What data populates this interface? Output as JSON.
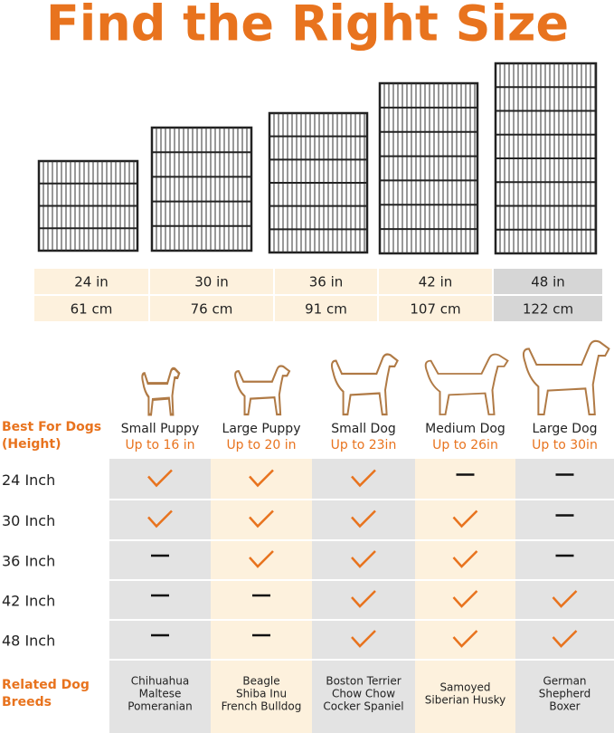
{
  "title": "Find the Right Size",
  "sizes": {
    "rows": [
      [
        "24 in",
        "30 in",
        "36 in",
        "42 in",
        "48 in"
      ],
      [
        "61 cm",
        "76 cm",
        "91 cm",
        "107 cm",
        "122 cm"
      ]
    ]
  },
  "table": {
    "header_label": [
      "Best For Dogs",
      "(Height)"
    ],
    "dogs": [
      {
        "name": "Small Puppy",
        "height": "Up to 16 in",
        "breeds": [
          "Chihuahua",
          "Maltese",
          "Pomeranian"
        ]
      },
      {
        "name": "Large Puppy",
        "height": "Up to 20 in",
        "breeds": [
          "Beagle",
          "Shiba Inu",
          "French Bulldog"
        ]
      },
      {
        "name": "Small Dog",
        "height": "Up to 23in",
        "breeds": [
          "Boston Terrier",
          "Chow Chow",
          "Cocker Spaniel"
        ]
      },
      {
        "name": "Medium Dog",
        "height": "Up to 26in",
        "breeds": [
          "Samoyed",
          "Siberian Husky"
        ]
      },
      {
        "name": "Large Dog",
        "height": "Up to 30in",
        "breeds": [
          "German",
          "Shepherd",
          "Boxer"
        ]
      }
    ],
    "rows": [
      {
        "label": "24 Inch",
        "fits": [
          true,
          true,
          true,
          false,
          false
        ]
      },
      {
        "label": "30 Inch",
        "fits": [
          true,
          true,
          true,
          true,
          false
        ]
      },
      {
        "label": "36 Inch",
        "fits": [
          false,
          true,
          true,
          true,
          false
        ]
      },
      {
        "label": "42 Inch",
        "fits": [
          false,
          false,
          true,
          true,
          true
        ]
      },
      {
        "label": "48 Inch",
        "fits": [
          false,
          false,
          true,
          true,
          true
        ]
      }
    ],
    "breeds_label": [
      "Related Dog",
      "Breeds"
    ]
  }
}
